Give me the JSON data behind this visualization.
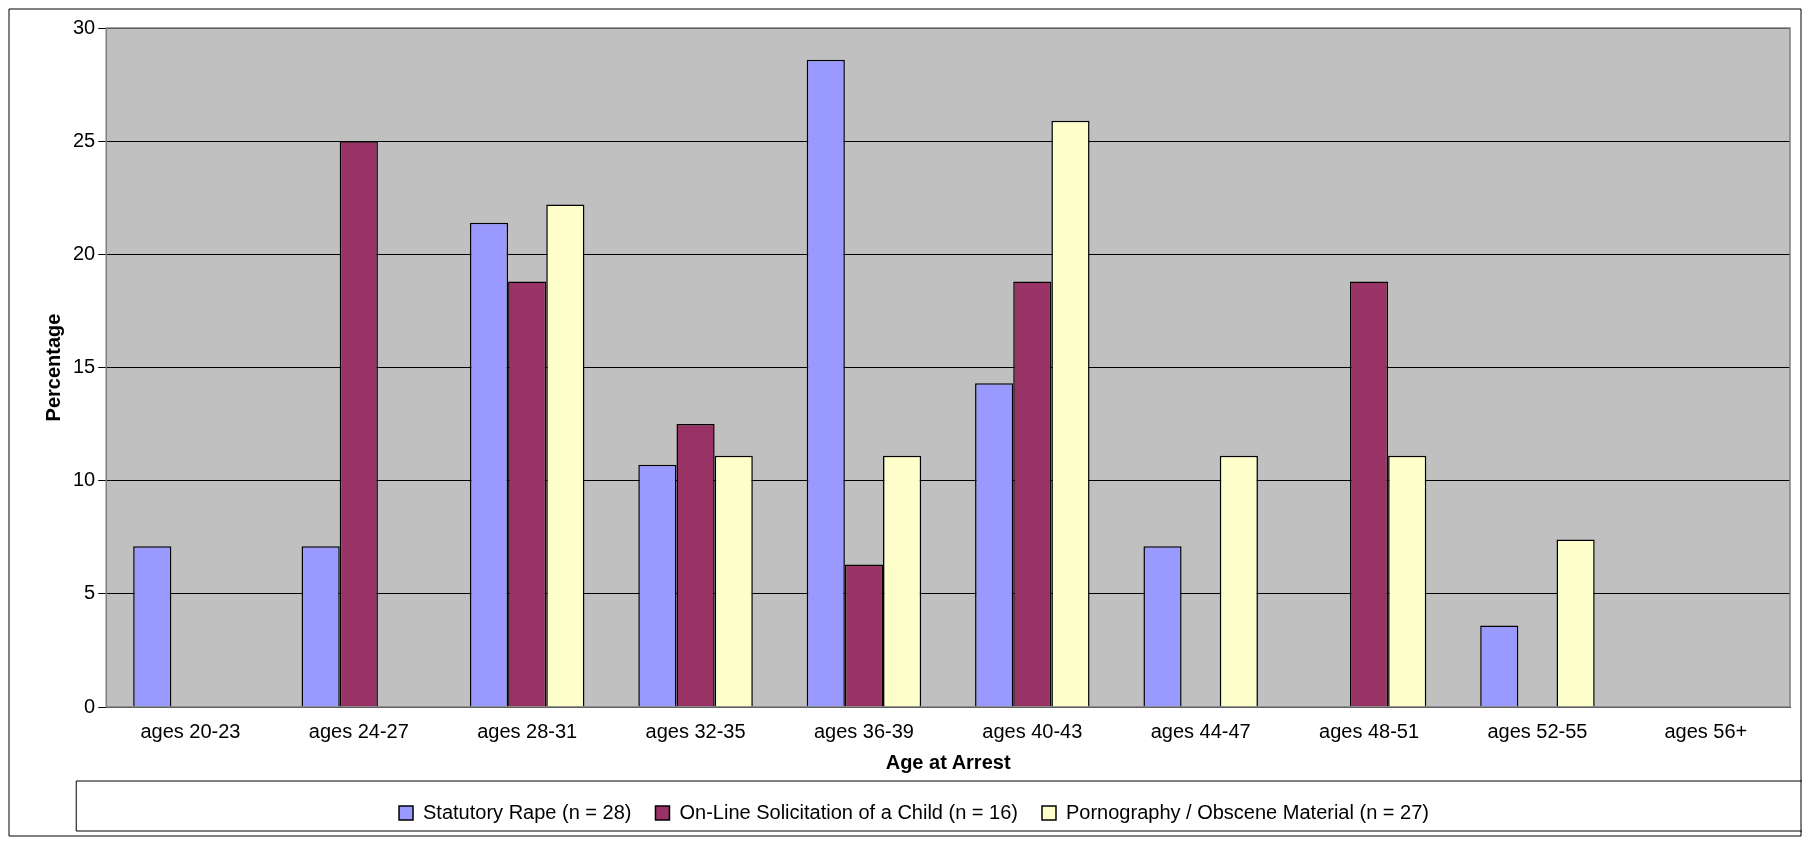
{
  "chart_data": {
    "type": "bar",
    "xlabel": "Age at Arrest",
    "ylabel": "Percentage",
    "categories": [
      "ages 20-23",
      "ages 24-27",
      "ages 28-31",
      "ages 32-35",
      "ages 36-39",
      "ages 40-43",
      "ages 44-47",
      "ages 48-51",
      "ages 52-55",
      "ages 56+"
    ],
    "series": [
      {
        "name": "Statutory Rape (n = 28)",
        "color": "#9999ff",
        "values": [
          7.1,
          7.1,
          21.4,
          10.7,
          28.6,
          14.3,
          7.1,
          0,
          3.6,
          0
        ]
      },
      {
        "name": "On-Line Solicitation of a Child (n = 16)",
        "color": "#993366",
        "values": [
          0,
          25,
          18.8,
          12.5,
          6.3,
          18.8,
          0,
          18.8,
          0,
          0
        ]
      },
      {
        "name": "Pornography / Obscene Material (n = 27)",
        "color": "#ffffcc",
        "values": [
          0,
          0,
          22.2,
          11.1,
          11.1,
          25.9,
          11.1,
          11.1,
          7.4,
          0
        ]
      }
    ],
    "ylim": [
      0,
      30
    ],
    "yticks": [
      0,
      5,
      10,
      15,
      20,
      25,
      30
    ],
    "grid": "y",
    "legend": "bottom"
  }
}
